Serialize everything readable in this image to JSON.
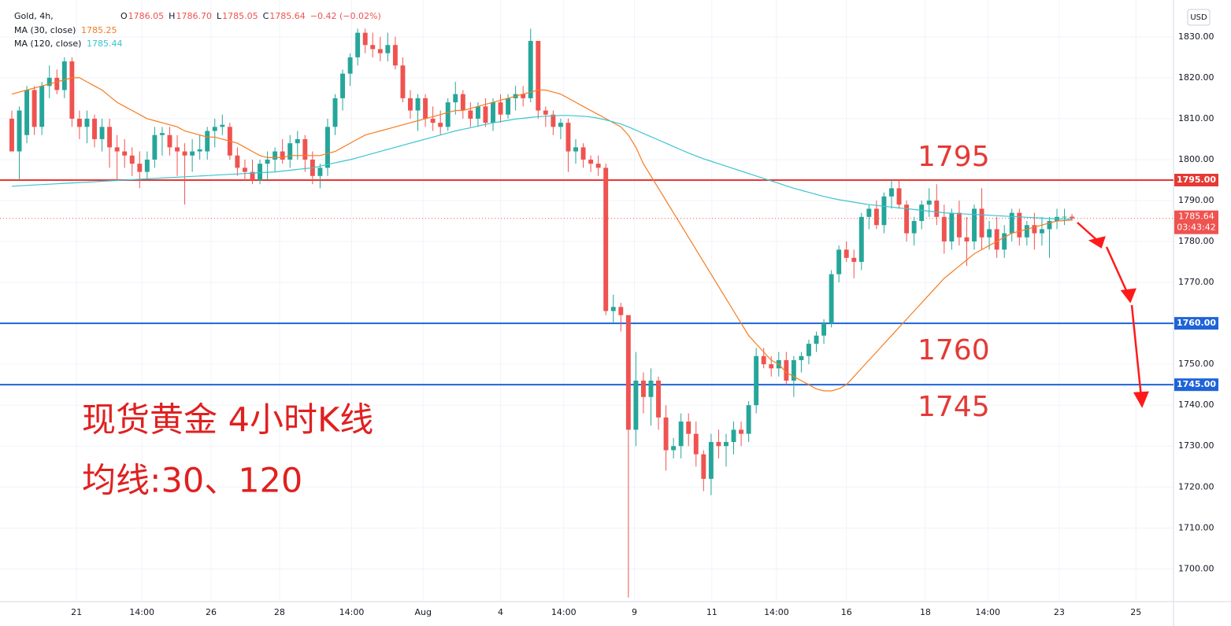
{
  "chart_data": {
    "type": "candlestick",
    "header": {
      "title": "Gold, 4h,",
      "ohlc": [
        {
          "key": "O",
          "value": "1786.05"
        },
        {
          "key": "H",
          "value": "1786.70"
        },
        {
          "key": "L",
          "value": "1785.05"
        },
        {
          "key": "C",
          "value": "1785.64"
        }
      ],
      "change": "−0.42 (−0.02%)"
    },
    "currency": "USD",
    "up_color": "#26a69a",
    "down_color": "#ef5350",
    "candles": [
      [
        1810,
        1812,
        1802,
        1802
      ],
      [
        1802,
        1813,
        1795,
        1812
      ],
      [
        1806,
        1818,
        1804,
        1817
      ],
      [
        1817,
        1818,
        1806,
        1808
      ],
      [
        1808,
        1819,
        1806,
        1818
      ],
      [
        1818,
        1823,
        1815,
        1820
      ],
      [
        1820,
        1822,
        1816,
        1817
      ],
      [
        1817,
        1825,
        1815,
        1824
      ],
      [
        1824,
        1825,
        1808,
        1810
      ],
      [
        1810,
        1812,
        1805,
        1808
      ],
      [
        1808,
        1812,
        1804,
        1810
      ],
      [
        1810,
        1811,
        1803,
        1805
      ],
      [
        1805,
        1810,
        1802,
        1808
      ],
      [
        1808,
        1810,
        1798,
        1803
      ],
      [
        1803,
        1806,
        1795,
        1802
      ],
      [
        1802,
        1805,
        1798,
        1801
      ],
      [
        1801,
        1803,
        1796,
        1799
      ],
      [
        1799,
        1802,
        1793,
        1797
      ],
      [
        1797,
        1802,
        1795,
        1800
      ],
      [
        1800,
        1808,
        1798,
        1806
      ],
      [
        1806,
        1808,
        1801,
        1806.5
      ],
      [
        1806,
        1808,
        1801,
        1803
      ],
      [
        1803,
        1806,
        1796,
        1802
      ],
      [
        1802,
        1804,
        1789,
        1801
      ],
      [
        1801,
        1805,
        1797,
        1802
      ],
      [
        1802,
        1806,
        1800,
        1802.5
      ],
      [
        1802,
        1808,
        1800,
        1807
      ],
      [
        1807,
        1810,
        1803,
        1808
      ],
      [
        1808,
        1811,
        1806,
        1808.5
      ],
      [
        1808,
        1809,
        1800,
        1801
      ],
      [
        1801,
        1803,
        1796,
        1798
      ],
      [
        1798,
        1800,
        1795,
        1797
      ],
      [
        1797,
        1800,
        1794,
        1795
      ],
      [
        1795,
        1800,
        1794,
        1799
      ],
      [
        1799,
        1802,
        1795,
        1800
      ],
      [
        1800,
        1803,
        1797,
        1802
      ],
      [
        1802,
        1805,
        1799,
        1800
      ],
      [
        1800,
        1806,
        1798,
        1804
      ],
      [
        1804,
        1807,
        1800,
        1805
      ],
      [
        1805,
        1806,
        1797,
        1800
      ],
      [
        1800,
        1802,
        1794,
        1796
      ],
      [
        1796,
        1799,
        1793,
        1798
      ],
      [
        1798,
        1810,
        1796,
        1808
      ],
      [
        1808,
        1816,
        1806,
        1815
      ],
      [
        1815,
        1822,
        1812,
        1821
      ],
      [
        1821,
        1826,
        1818,
        1825
      ],
      [
        1825,
        1832,
        1823,
        1831
      ],
      [
        1831,
        1832,
        1826,
        1828
      ],
      [
        1828,
        1831,
        1825,
        1827
      ],
      [
        1827,
        1830,
        1824,
        1826
      ],
      [
        1826,
        1831,
        1824,
        1828
      ],
      [
        1828,
        1830,
        1822,
        1823
      ],
      [
        1823,
        1825,
        1814,
        1815
      ],
      [
        1815,
        1817,
        1810,
        1812
      ],
      [
        1812,
        1816,
        1807,
        1815
      ],
      [
        1815,
        1816,
        1808,
        1810
      ],
      [
        1810,
        1813,
        1807,
        1809
      ],
      [
        1809,
        1812,
        1806,
        1808
      ],
      [
        1808,
        1815,
        1807,
        1814
      ],
      [
        1814,
        1819,
        1811,
        1816
      ],
      [
        1816,
        1817,
        1810,
        1812
      ],
      [
        1812,
        1814,
        1808,
        1810
      ],
      [
        1810,
        1814,
        1808,
        1813
      ],
      [
        1813,
        1815,
        1808,
        1809
      ],
      [
        1809,
        1815,
        1807,
        1814
      ],
      [
        1814,
        1816,
        1809,
        1811
      ],
      [
        1811,
        1816,
        1810,
        1815
      ],
      [
        1815,
        1818,
        1812,
        1816
      ],
      [
        1816,
        1818,
        1813,
        1815
      ],
      [
        1815,
        1832,
        1814,
        1829
      ],
      [
        1829,
        1829,
        1810,
        1812
      ],
      [
        1812,
        1813,
        1808,
        1811
      ],
      [
        1811,
        1812,
        1806,
        1808
      ],
      [
        1808,
        1810,
        1805,
        1809
      ],
      [
        1809,
        1810,
        1797,
        1802
      ],
      [
        1802,
        1805,
        1799,
        1803
      ],
      [
        1803,
        1804,
        1798,
        1800
      ],
      [
        1800,
        1801,
        1797,
        1799
      ],
      [
        1799,
        1801,
        1796,
        1798
      ],
      [
        1798,
        1799,
        1762,
        1763
      ],
      [
        1763,
        1767,
        1760,
        1764
      ],
      [
        1764,
        1765,
        1758,
        1762
      ],
      [
        1762,
        1762,
        1693,
        1734
      ],
      [
        1734,
        1753,
        1730,
        1746
      ],
      [
        1746,
        1748,
        1738,
        1742
      ],
      [
        1742,
        1749,
        1735,
        1746
      ],
      [
        1746,
        1747,
        1734,
        1737
      ],
      [
        1737,
        1740,
        1724,
        1729
      ],
      [
        1729,
        1732,
        1727,
        1730
      ],
      [
        1730,
        1738,
        1727,
        1736
      ],
      [
        1736,
        1738,
        1730,
        1733
      ],
      [
        1733,
        1736,
        1725,
        1728
      ],
      [
        1728,
        1729,
        1719,
        1722
      ],
      [
        1722,
        1733,
        1718,
        1731
      ],
      [
        1731,
        1734,
        1727,
        1730
      ],
      [
        1730,
        1733,
        1725,
        1731
      ],
      [
        1731,
        1736,
        1728,
        1734
      ],
      [
        1734,
        1736,
        1730,
        1733
      ],
      [
        1733,
        1741,
        1731,
        1740
      ],
      [
        1740,
        1754,
        1738,
        1752
      ],
      [
        1752,
        1754,
        1749,
        1750
      ],
      [
        1750,
        1752,
        1747,
        1749
      ],
      [
        1749,
        1753,
        1747,
        1751
      ],
      [
        1751,
        1753,
        1745,
        1746
      ],
      [
        1746,
        1752,
        1742,
        1751
      ],
      [
        1751,
        1753,
        1748,
        1752
      ],
      [
        1752,
        1756,
        1750,
        1755
      ],
      [
        1755,
        1758,
        1753,
        1757
      ],
      [
        1757,
        1761,
        1755,
        1760
      ],
      [
        1760,
        1773,
        1759,
        1772
      ],
      [
        1772,
        1779,
        1770,
        1778
      ],
      [
        1778,
        1780,
        1775,
        1776
      ],
      [
        1776,
        1778,
        1771,
        1775
      ],
      [
        1775,
        1787,
        1773,
        1786
      ],
      [
        1786,
        1789,
        1783,
        1788
      ],
      [
        1788,
        1790,
        1783,
        1784
      ],
      [
        1784,
        1792,
        1782,
        1791
      ],
      [
        1791,
        1795,
        1788,
        1793
      ],
      [
        1793,
        1795,
        1788,
        1789
      ],
      [
        1789,
        1790,
        1780,
        1782
      ],
      [
        1782,
        1786,
        1779,
        1785
      ],
      [
        1785,
        1790,
        1783,
        1789
      ],
      [
        1789,
        1793,
        1786,
        1790
      ],
      [
        1790,
        1794,
        1784,
        1786
      ],
      [
        1786,
        1789,
        1777,
        1780
      ],
      [
        1780,
        1788,
        1778,
        1787
      ],
      [
        1787,
        1790,
        1779,
        1781
      ],
      [
        1781,
        1786,
        1774,
        1780
      ],
      [
        1780,
        1789,
        1778,
        1788
      ],
      [
        1788,
        1793,
        1778,
        1781
      ],
      [
        1781,
        1785,
        1778,
        1783
      ],
      [
        1783,
        1786,
        1776,
        1778
      ],
      [
        1778,
        1784,
        1776,
        1782
      ],
      [
        1782,
        1788,
        1780,
        1787
      ],
      [
        1787,
        1788,
        1779,
        1781
      ],
      [
        1781,
        1785,
        1779,
        1784
      ],
      [
        1784,
        1787,
        1778,
        1782
      ],
      [
        1782,
        1786,
        1779,
        1783
      ],
      [
        1783,
        1786,
        1776,
        1785
      ],
      [
        1785,
        1788,
        1783,
        1786
      ],
      [
        1786,
        1788,
        1784,
        1786.05
      ],
      [
        1786.05,
        1786.7,
        1785.05,
        1785.64
      ]
    ],
    "series": [
      {
        "name": "MA (30, close)",
        "color": "#f57c1f",
        "last_label": "1785.25",
        "values": [
          1816,
          1816.5,
          1817,
          1817.5,
          1818,
          1818.5,
          1819,
          1819.5,
          1820,
          1820,
          1819,
          1818,
          1817,
          1815.5,
          1814,
          1813,
          1812,
          1811,
          1810,
          1809.5,
          1809,
          1808.5,
          1808,
          1807,
          1806.5,
          1806,
          1805.5,
          1805.5,
          1805,
          1804.5,
          1804,
          1803,
          1802,
          1801,
          1800.5,
          1800.5,
          1800.5,
          1801,
          1801,
          1801,
          1801,
          1801,
          1801.5,
          1802,
          1803,
          1804,
          1805,
          1806,
          1806.5,
          1807,
          1807.5,
          1808,
          1808.5,
          1809,
          1809.5,
          1810,
          1810.5,
          1811,
          1811.5,
          1812,
          1812,
          1812.5,
          1813,
          1813.5,
          1814,
          1814.5,
          1815,
          1815.5,
          1816,
          1816.5,
          1817,
          1817,
          1816.5,
          1816,
          1815,
          1814,
          1813,
          1812,
          1811,
          1810,
          1809,
          1808,
          1806,
          1803,
          1799,
          1796,
          1793,
          1790,
          1787,
          1784,
          1781,
          1778,
          1775,
          1772,
          1769,
          1766,
          1763,
          1760,
          1757,
          1755,
          1753,
          1751,
          1750,
          1748,
          1747,
          1746,
          1745,
          1744,
          1743.5,
          1743.5,
          1744,
          1745,
          1747,
          1749,
          1751,
          1753,
          1755,
          1757,
          1759,
          1761,
          1763,
          1765,
          1767,
          1769,
          1771,
          1772.5,
          1774,
          1775.5,
          1777,
          1778,
          1779,
          1780,
          1781,
          1782,
          1782.5,
          1783,
          1783.5,
          1784,
          1784.5,
          1785,
          1785.1,
          1785.25
        ]
      },
      {
        "name": "MA (120, close)",
        "color": "#3bc4cf",
        "last_label": "1785.44",
        "values": [
          1793.5,
          1793.6,
          1793.7,
          1793.8,
          1793.9,
          1794,
          1794.1,
          1794.2,
          1794.3,
          1794.4,
          1794.5,
          1794.6,
          1794.7,
          1794.8,
          1794.9,
          1795,
          1795.1,
          1795.2,
          1795.3,
          1795.4,
          1795.5,
          1795.6,
          1795.7,
          1795.8,
          1795.9,
          1796,
          1796.1,
          1796.2,
          1796.3,
          1796.4,
          1796.5,
          1796.6,
          1796.7,
          1796.8,
          1796.9,
          1797,
          1797.2,
          1797.4,
          1797.6,
          1797.8,
          1798,
          1798.4,
          1798.8,
          1799.2,
          1799.6,
          1800,
          1800.5,
          1801,
          1801.5,
          1802,
          1802.5,
          1803,
          1803.5,
          1804,
          1804.5,
          1805,
          1805.5,
          1806,
          1806.5,
          1807,
          1807.4,
          1807.8,
          1808.2,
          1808.6,
          1809,
          1809.3,
          1809.6,
          1809.9,
          1810.1,
          1810.3,
          1810.5,
          1810.6,
          1810.7,
          1810.8,
          1810.8,
          1810.7,
          1810.6,
          1810.4,
          1810.1,
          1809.7,
          1809.2,
          1808.7,
          1808,
          1807.2,
          1806.4,
          1805.6,
          1804.8,
          1804,
          1803.2,
          1802.4,
          1801.6,
          1800.9,
          1800.2,
          1799.6,
          1799,
          1798.4,
          1797.8,
          1797.2,
          1796.6,
          1796,
          1795.4,
          1794.8,
          1794.2,
          1793.6,
          1793,
          1792.5,
          1792,
          1791.5,
          1791,
          1790.6,
          1790.2,
          1789.9,
          1789.6,
          1789.3,
          1789,
          1788.8,
          1788.6,
          1788.4,
          1788.2,
          1788,
          1787.8,
          1787.6,
          1787.4,
          1787.2,
          1787,
          1786.9,
          1786.8,
          1786.7,
          1786.6,
          1786.5,
          1786.4,
          1786.3,
          1786.2,
          1786.1,
          1786,
          1785.9,
          1785.8,
          1785.7,
          1785.6,
          1785.5,
          1785.47,
          1785.44
        ]
      }
    ],
    "ylim": [
      1692,
      1839
    ],
    "yticks": [
      {
        "value": 1700,
        "label": "1700.00"
      },
      {
        "value": 1710,
        "label": "1710.00"
      },
      {
        "value": 1720,
        "label": "1720.00"
      },
      {
        "value": 1730,
        "label": "1730.00"
      },
      {
        "value": 1740,
        "label": "1740.00"
      },
      {
        "value": 1750,
        "label": "1750.00"
      },
      {
        "value": 1760,
        "label": "1760.00"
      },
      {
        "value": 1770,
        "label": "1770.00"
      },
      {
        "value": 1780,
        "label": "1780.00"
      },
      {
        "value": 1790,
        "label": "1790.00"
      },
      {
        "value": 1800,
        "label": "1800.00"
      },
      {
        "value": 1810,
        "label": "1810.00"
      },
      {
        "value": 1820,
        "label": "1820.00"
      },
      {
        "value": 1830,
        "label": "1830.00"
      }
    ],
    "xlim": [
      -1.57,
      154.5
    ],
    "xticks": [
      {
        "value": 8.6,
        "label": "21"
      },
      {
        "value": 17.3,
        "label": "14:00"
      },
      {
        "value": 26.5,
        "label": "26"
      },
      {
        "value": 35.6,
        "label": "28"
      },
      {
        "value": 45.2,
        "label": "14:00"
      },
      {
        "value": 54.7,
        "label": "Aug"
      },
      {
        "value": 65,
        "label": "4"
      },
      {
        "value": 73.4,
        "label": "14:00"
      },
      {
        "value": 82.8,
        "label": "9"
      },
      {
        "value": 93.1,
        "label": "11"
      },
      {
        "value": 101.7,
        "label": "14:00"
      },
      {
        "value": 111,
        "label": "16"
      },
      {
        "value": 121.5,
        "label": "18"
      },
      {
        "value": 129.8,
        "label": "14:00"
      },
      {
        "value": 139.3,
        "label": "23"
      },
      {
        "value": 149.5,
        "label": "25"
      }
    ],
    "grid": true,
    "levels": [
      {
        "value": 1795,
        "label": "1795.00",
        "color": "#e53935"
      },
      {
        "value": 1760,
        "label": "1760.00",
        "color": "#1e63d8"
      },
      {
        "value": 1745,
        "label": "1745.00",
        "color": "#1e63d8"
      }
    ],
    "current_price": {
      "value": 1785.64,
      "label": "1785.64",
      "countdown": "03:43:42"
    },
    "annotations": [
      "1795",
      "1760",
      "1745"
    ],
    "notes": [
      "现货黄金 4小时K线",
      "均线:30、120"
    ]
  }
}
